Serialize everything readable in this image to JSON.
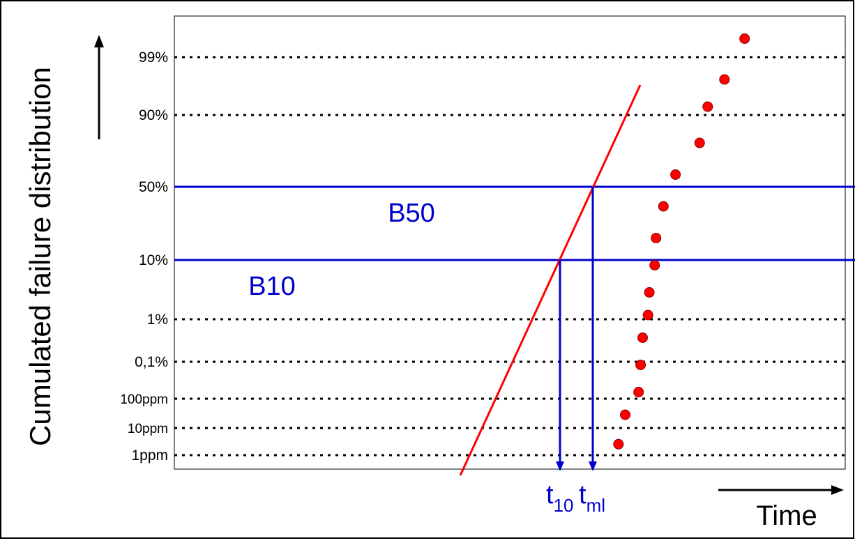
{
  "chart_data": {
    "type": "scatter",
    "ylabel": "Cumulated failure distribution",
    "xlabel": "Time",
    "y_scale": "weibull-probability",
    "x_scale": "time (relative, unlabeled)",
    "y_ticks": [
      "99%",
      "90%",
      "50%",
      "10%",
      "1%",
      "0,1%",
      "100ppm",
      "10ppm",
      "1ppm"
    ],
    "grid": "horizontal dotted lines at each y tick",
    "reference_lines": [
      {
        "label": "B50",
        "y": "50%",
        "color": "#0000cc"
      },
      {
        "label": "B10",
        "y": "10%",
        "color": "#0000cc"
      }
    ],
    "time_markers": [
      {
        "label": "t",
        "subscript": "10",
        "at": "B10"
      },
      {
        "label": "t",
        "subscript": "ml",
        "at": "B50"
      }
    ],
    "fit_line": {
      "color": "#ff0000"
    },
    "point_color": "#ff0000",
    "series": [
      {
        "points": [
          {
            "x": 0.662,
            "y": 0.055
          },
          {
            "x": 0.672,
            "y": 0.12
          },
          {
            "x": 0.692,
            "y": 0.17
          },
          {
            "x": 0.695,
            "y": 0.23
          },
          {
            "x": 0.698,
            "y": 0.29
          },
          {
            "x": 0.706,
            "y": 0.34
          },
          {
            "x": 0.708,
            "y": 0.39
          },
          {
            "x": 0.716,
            "y": 0.45
          },
          {
            "x": 0.718,
            "y": 0.51
          },
          {
            "x": 0.729,
            "y": 0.58
          },
          {
            "x": 0.747,
            "y": 0.65
          },
          {
            "x": 0.783,
            "y": 0.72
          },
          {
            "x": 0.795,
            "y": 0.8
          },
          {
            "x": 0.82,
            "y": 0.86
          },
          {
            "x": 0.85,
            "y": 0.95
          }
        ]
      }
    ]
  }
}
